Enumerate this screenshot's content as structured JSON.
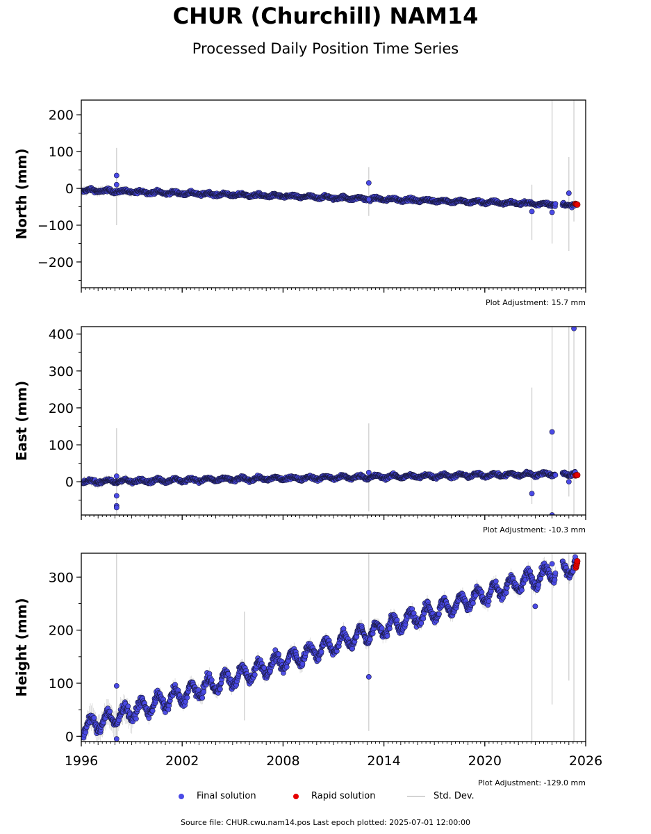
{
  "header": {
    "title": "CHUR (Churchill) NAM14",
    "subtitle": "Processed Daily Position Time Series"
  },
  "legend": {
    "final": "Final solution",
    "rapid": "Rapid solution",
    "stddev": "Std. Dev."
  },
  "colors": {
    "final": "#4a4ae6",
    "final_edge": "#1a1a40",
    "rapid": "#e60000",
    "stddev": "#a0a0a0"
  },
  "footer": "Source file: CHUR.cwu.nam14.pos  Last epoch plotted: 2025-07-01 12:00:00",
  "chart_data": [
    {
      "type": "scatter",
      "ylabel": "North (mm)",
      "adjustment": "Plot Adjustment: 15.7 mm",
      "xlim": [
        1996,
        2026
      ],
      "ylim": [
        -270,
        240
      ],
      "yticks": [
        200,
        100,
        0,
        -100,
        -200
      ],
      "ytick_labels": [
        "200",
        "100",
        "0",
        "−100",
        "−200"
      ],
      "trend": [
        [
          1996,
          -5
        ],
        [
          2025.5,
          -45
        ]
      ],
      "seasonal_amp": 3,
      "noise": 3,
      "outliers": [
        [
          1998.1,
          35
        ],
        [
          1998.1,
          10
        ],
        [
          2013.1,
          15
        ],
        [
          2013.1,
          -30
        ],
        [
          2022.8,
          -63
        ],
        [
          2024.0,
          -65
        ],
        [
          2025.0,
          -13
        ]
      ],
      "error_bars": [
        [
          1998.1,
          -100,
          110
        ],
        [
          2013.1,
          -75,
          58
        ],
        [
          2022.8,
          -140,
          10
        ],
        [
          2024.0,
          -150,
          240
        ],
        [
          2025.0,
          -170,
          85
        ],
        [
          2025.3,
          -90,
          240
        ]
      ],
      "rapid": [
        [
          2025.4,
          -42
        ],
        [
          2025.45,
          -43
        ],
        [
          2025.5,
          -44
        ]
      ]
    },
    {
      "type": "scatter",
      "ylabel": "East (mm)",
      "adjustment": "Plot Adjustment: -10.3 mm",
      "xlim": [
        1996,
        2026
      ],
      "ylim": [
        -90,
        420
      ],
      "yticks": [
        400,
        300,
        200,
        100,
        0
      ],
      "ytick_labels": [
        "400",
        "300",
        "200",
        "100",
        "0"
      ],
      "trend": [
        [
          1996,
          0
        ],
        [
          2025.5,
          22
        ]
      ],
      "seasonal_amp": 4,
      "noise": 3,
      "outliers": [
        [
          1998.1,
          15
        ],
        [
          1998.1,
          -38
        ],
        [
          1998.1,
          -65
        ],
        [
          1998.1,
          -70
        ],
        [
          2013.1,
          25
        ],
        [
          2022.8,
          -32
        ],
        [
          2024.0,
          135
        ],
        [
          2024.0,
          -90
        ],
        [
          2025.0,
          0
        ],
        [
          2025.3,
          415
        ]
      ],
      "error_bars": [
        [
          1998.1,
          -90,
          145
        ],
        [
          2013.1,
          -80,
          158
        ],
        [
          2022.8,
          -60,
          255
        ],
        [
          2024.0,
          -90,
          420
        ],
        [
          2025.0,
          -40,
          420
        ],
        [
          2025.3,
          -90,
          420
        ]
      ],
      "rapid": [
        [
          2025.4,
          17
        ],
        [
          2025.45,
          18
        ],
        [
          2025.5,
          18
        ]
      ]
    },
    {
      "type": "scatter",
      "ylabel": "Height (mm)",
      "adjustment": "Plot Adjustment: -129.0 mm",
      "xlim": [
        1996,
        2026
      ],
      "ylim": [
        -10,
        345
      ],
      "yticks": [
        300,
        200,
        100,
        0
      ],
      "ytick_labels": [
        "300",
        "200",
        "100",
        "0"
      ],
      "xticks": [
        1996,
        2002,
        2008,
        2014,
        2020,
        2026
      ],
      "xtick_labels": [
        "1996",
        "2002",
        "2008",
        "2014",
        "2020",
        "2026"
      ],
      "trend": [
        [
          1996,
          15
        ],
        [
          2025.5,
          325
        ]
      ],
      "seasonal_amp": 15,
      "noise": 6,
      "outliers": [
        [
          1998.1,
          95
        ],
        [
          1998.1,
          -5
        ],
        [
          2013.1,
          112
        ],
        [
          2023.0,
          245
        ],
        [
          2024.0,
          325
        ]
      ],
      "error_bars": [
        [
          1998.1,
          0,
          345
        ],
        [
          2005.7,
          30,
          235
        ],
        [
          2013.1,
          10,
          345
        ],
        [
          2022.8,
          -10,
          300
        ],
        [
          2024.0,
          60,
          345
        ],
        [
          2025.0,
          105,
          345
        ],
        [
          2025.3,
          -10,
          345
        ]
      ],
      "rapid": [
        [
          2025.42,
          318
        ],
        [
          2025.45,
          322
        ],
        [
          2025.48,
          326
        ],
        [
          2025.5,
          330
        ]
      ]
    }
  ]
}
